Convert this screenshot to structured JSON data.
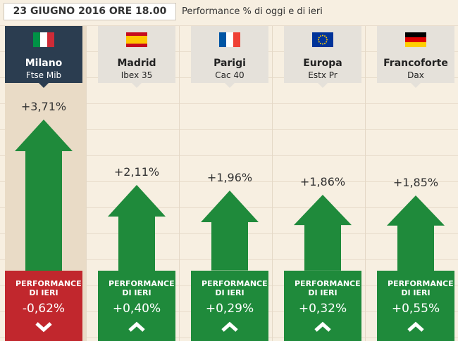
{
  "chart_data": {
    "type": "bar",
    "title": "23 GIUGNO 2016 ORE 18.00",
    "subtitle": "Performance % di oggi e di ieri",
    "categories": [
      "Milano",
      "Madrid",
      "Parigi",
      "Europa",
      "Francoforte"
    ],
    "indices": [
      "Ftse Mib",
      "Ibex 35",
      "Cac 40",
      "Estx Pr",
      "Dax"
    ],
    "values": [
      3.71,
      2.11,
      1.96,
      1.86,
      1.85
    ],
    "value_labels": [
      "+3,71%",
      "+2,11%",
      "+1,96%",
      "+1,86%",
      "+1,85%"
    ],
    "color": "#1f8a3b",
    "yesterday": {
      "label": "PERFORMANCE DI IERI",
      "values": [
        -0.62,
        0.4,
        0.29,
        0.32,
        0.55
      ],
      "value_labels": [
        "-0,62%",
        "+0,40%",
        "+0,29%",
        "+0,32%",
        "+0,55%"
      ],
      "up_color": "#1f8a3b",
      "down_color": "#c1272d"
    }
  }
}
